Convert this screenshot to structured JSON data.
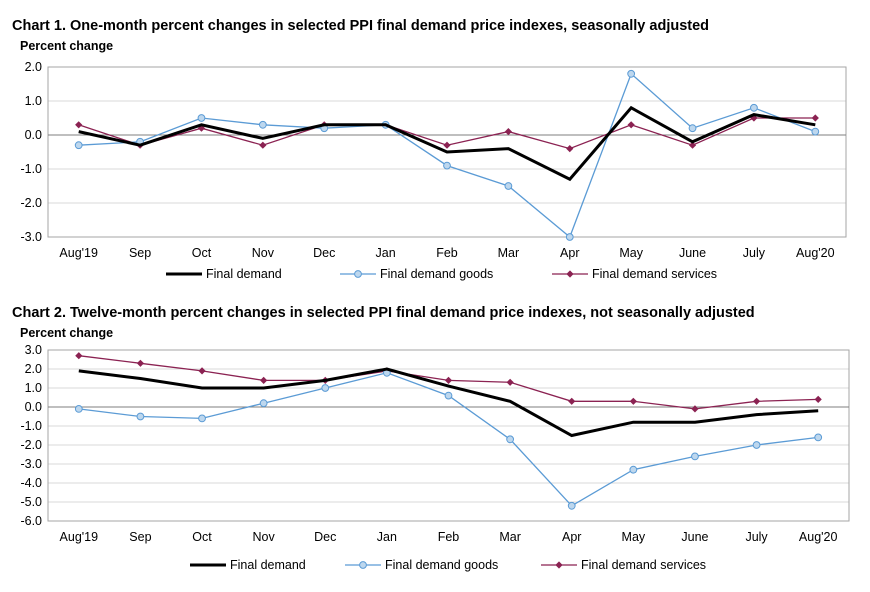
{
  "colors": {
    "final_demand": "#000000",
    "final_demand_goods": "#5b9bd5",
    "final_demand_goods_marker": "#bdd7ee",
    "final_demand_services": "#8b2252",
    "grid": "#d9d9d9",
    "frame": "#a6a6a6"
  },
  "chart_data": [
    {
      "type": "line",
      "title": "Chart 1. One-month percent changes in selected PPI final demand price indexes, seasonally adjusted",
      "ylabel": "Percent change",
      "xlabel": "",
      "categories": [
        "Aug'19",
        "Sep",
        "Oct",
        "Nov",
        "Dec",
        "Jan",
        "Feb",
        "Mar",
        "Apr",
        "May",
        "June",
        "July",
        "Aug'20"
      ],
      "ylim": [
        -3.0,
        2.0
      ],
      "yticks": [
        2.0,
        1.0,
        0.0,
        -1.0,
        -2.0,
        -3.0
      ],
      "ytick_labels": [
        "2.0",
        "1.0",
        "0.0",
        "-1.0",
        "-2.0",
        "-3.0"
      ],
      "grid": true,
      "legend": "bottom",
      "series": [
        {
          "name": "Final demand",
          "key": "final_demand",
          "marker": false,
          "values": [
            0.1,
            -0.3,
            0.3,
            -0.1,
            0.3,
            0.3,
            -0.5,
            -0.4,
            -1.3,
            0.8,
            -0.2,
            0.6,
            0.3
          ]
        },
        {
          "name": "Final demand goods",
          "key": "final_demand_goods",
          "marker": "circle",
          "values": [
            -0.3,
            -0.2,
            0.5,
            0.3,
            0.2,
            0.3,
            -0.9,
            -1.5,
            -3.0,
            1.8,
            0.2,
            0.8,
            0.1
          ]
        },
        {
          "name": "Final demand services",
          "key": "final_demand_services",
          "marker": "diamond",
          "values": [
            0.3,
            -0.3,
            0.2,
            -0.3,
            0.3,
            0.3,
            -0.3,
            0.1,
            -0.4,
            0.3,
            -0.3,
            0.5,
            0.5
          ]
        }
      ]
    },
    {
      "type": "line",
      "title": "Chart 2. Twelve-month percent changes in selected PPI final demand price indexes, not seasonally adjusted",
      "ylabel": "Percent change",
      "xlabel": "",
      "categories": [
        "Aug'19",
        "Sep",
        "Oct",
        "Nov",
        "Dec",
        "Jan",
        "Feb",
        "Mar",
        "Apr",
        "May",
        "June",
        "July",
        "Aug'20"
      ],
      "ylim": [
        -6.0,
        3.0
      ],
      "yticks": [
        3.0,
        2.0,
        1.0,
        0.0,
        -1.0,
        -2.0,
        -3.0,
        -4.0,
        -5.0,
        -6.0
      ],
      "ytick_labels": [
        "3.0",
        "2.0",
        "1.0",
        "0.0",
        "-1.0",
        "-2.0",
        "-3.0",
        "-4.0",
        "-5.0",
        "-6.0"
      ],
      "grid": true,
      "legend": "bottom",
      "series": [
        {
          "name": "Final demand",
          "key": "final_demand",
          "marker": false,
          "values": [
            1.9,
            1.5,
            1.0,
            1.0,
            1.4,
            2.0,
            1.1,
            0.3,
            -1.5,
            -0.8,
            -0.8,
            -0.4,
            -0.2
          ]
        },
        {
          "name": "Final demand goods",
          "key": "final_demand_goods",
          "marker": "circle",
          "values": [
            -0.1,
            -0.5,
            -0.6,
            0.2,
            1.0,
            1.8,
            0.6,
            -1.7,
            -5.2,
            -3.3,
            -2.6,
            -2.0,
            -1.6
          ]
        },
        {
          "name": "Final demand services",
          "key": "final_demand_services",
          "marker": "diamond",
          "values": [
            2.7,
            2.3,
            1.9,
            1.4,
            1.4,
            1.9,
            1.4,
            1.3,
            0.3,
            0.3,
            -0.1,
            0.3,
            0.4
          ]
        }
      ]
    }
  ]
}
